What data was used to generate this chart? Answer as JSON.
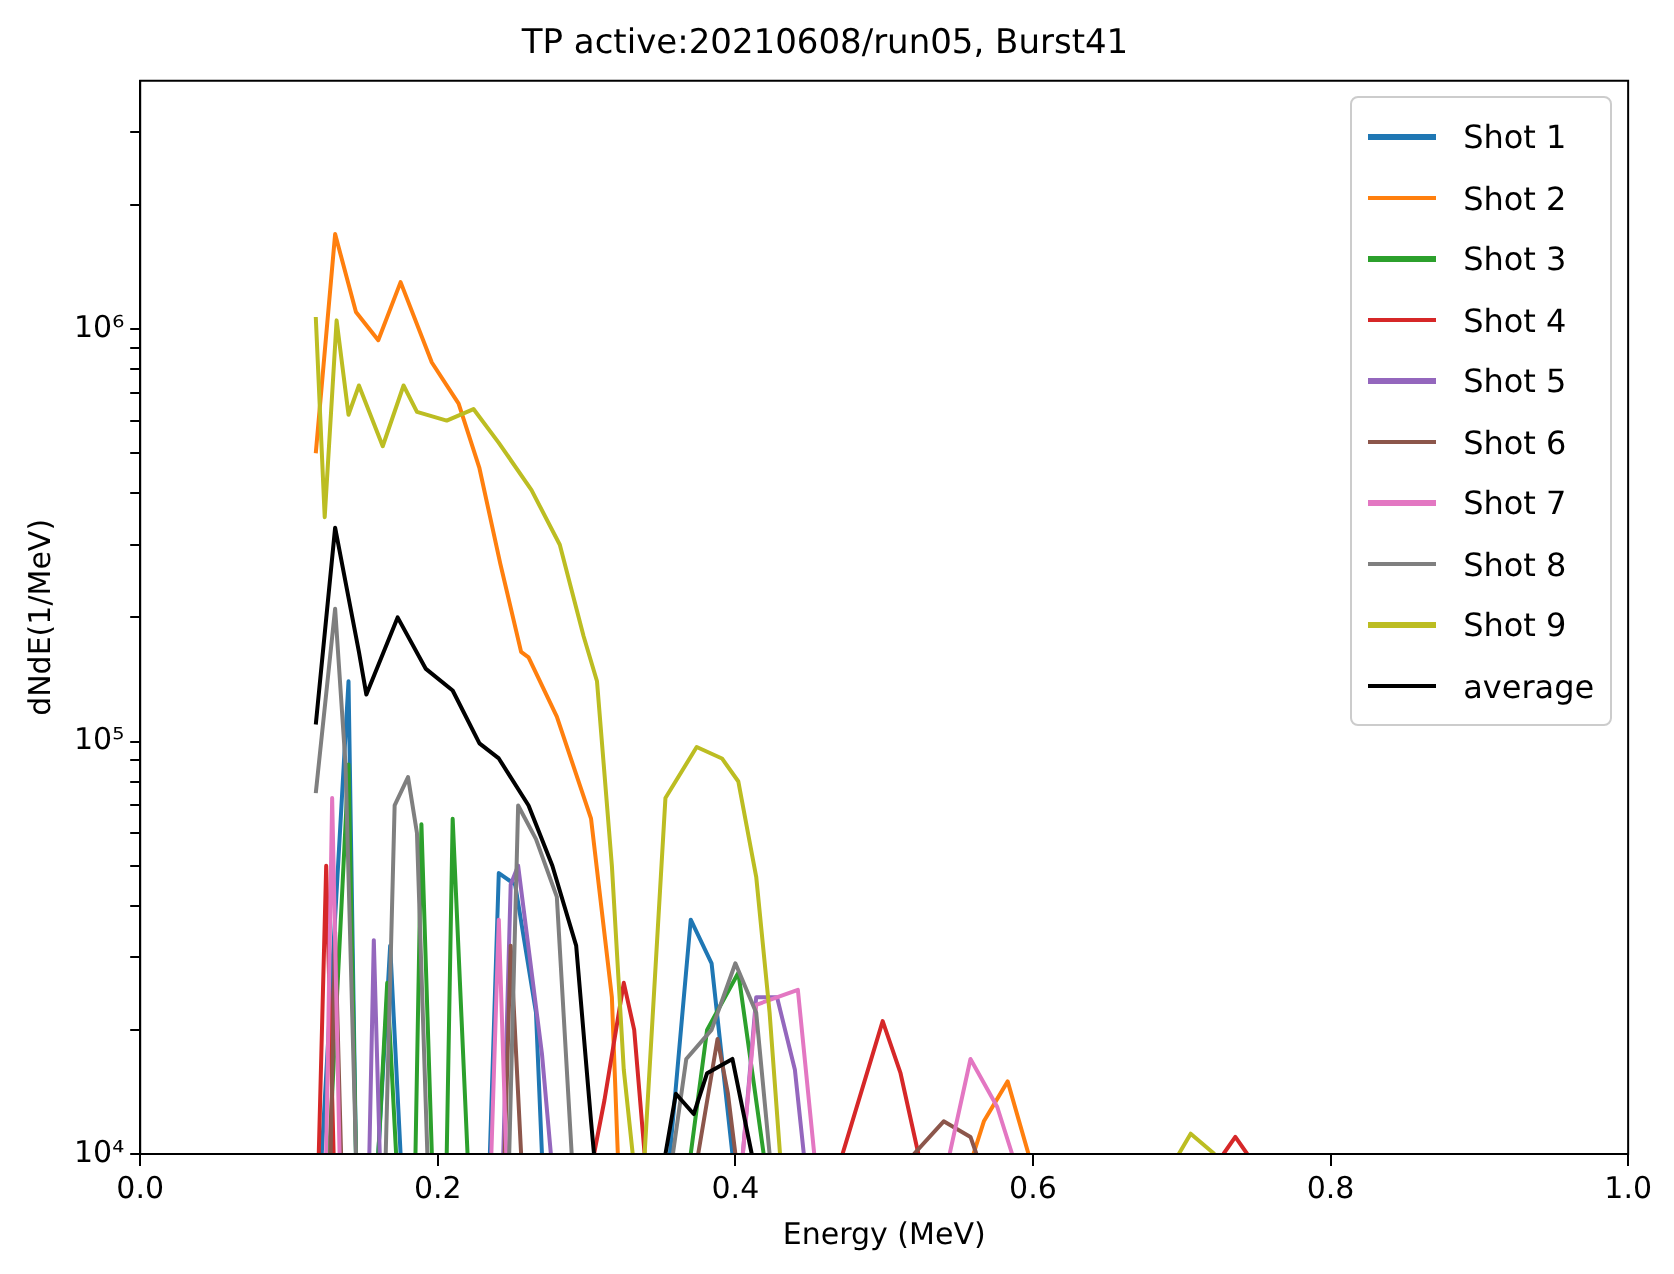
{
  "chart_data": {
    "type": "line",
    "title": "TP active:20210608/run05, Burst41",
    "xlabel": "Energy (MeV)",
    "ylabel": "dNdE(1/MeV)",
    "xlim": [
      0,
      1
    ],
    "xticks": [
      {
        "value": 0,
        "label": "0.0"
      },
      {
        "value": 0.2,
        "label": "0.2"
      },
      {
        "value": 0.4,
        "label": "0.4"
      },
      {
        "value": 0.6,
        "label": "0.6"
      },
      {
        "value": 0.8,
        "label": "0.8"
      },
      {
        "value": 1,
        "label": "1.0"
      }
    ],
    "ylim": [
      10000,
      4000000
    ],
    "log": "y",
    "yticks": [
      {
        "value": 10000,
        "label": "10⁴"
      },
      {
        "value": 20000,
        "label": null
      },
      {
        "value": 30000,
        "label": null
      },
      {
        "value": 40000,
        "label": null
      },
      {
        "value": 50000,
        "label": null
      },
      {
        "value": 60000,
        "label": null
      },
      {
        "value": 70000,
        "label": null
      },
      {
        "value": 80000,
        "label": null
      },
      {
        "value": 90000,
        "label": null
      },
      {
        "value": 100000,
        "label": "10⁵"
      },
      {
        "value": 200000,
        "label": null
      },
      {
        "value": 300000,
        "label": null
      },
      {
        "value": 400000,
        "label": null
      },
      {
        "value": 500000,
        "label": null
      },
      {
        "value": 600000,
        "label": null
      },
      {
        "value": 700000,
        "label": null
      },
      {
        "value": 800000,
        "label": null
      },
      {
        "value": 900000,
        "label": null
      },
      {
        "value": 1000000,
        "label": "10⁶"
      },
      {
        "value": 2000000,
        "label": null
      },
      {
        "value": 3000000,
        "label": null
      }
    ],
    "legend": "top right",
    "grid": false,
    "line_style": "solid",
    "marker": "none",
    "series": [
      {
        "name": "Shot 1",
        "color": "#1f77b4",
        "x": [
          0.122,
          0.14,
          0.145,
          0.15,
          0.16,
          0.168,
          0.175,
          0.2,
          0.235,
          0.241,
          0.252,
          0.266,
          0.27,
          0.3,
          0.356,
          0.37,
          0.384,
          0.391,
          0.398
        ],
        "values": [
          10000,
          140000,
          10000,
          null,
          10000,
          32000,
          10000,
          null,
          10000,
          48000,
          45000,
          22000,
          10000,
          null,
          10000,
          37000,
          29000,
          17000,
          10000
        ]
      },
      {
        "name": "Shot 2",
        "color": "#ff7f0e",
        "x": [
          0.118,
          0.131,
          0.145,
          0.16,
          0.175,
          0.196,
          0.214,
          0.228,
          0.242,
          0.256,
          0.261,
          0.28,
          0.303,
          0.317,
          0.321,
          0.45,
          0.56,
          0.567,
          0.583,
          0.597
        ],
        "values": [
          500000,
          1700000,
          1100000,
          940000,
          1300000,
          830000,
          660000,
          460000,
          270000,
          165000,
          160000,
          115000,
          65000,
          24000,
          10000,
          null,
          10000,
          12000,
          15000,
          10000
        ]
      },
      {
        "name": "Shot 3",
        "color": "#2ca02c",
        "x": [
          0.127,
          0.14,
          0.145,
          0.15,
          0.16,
          0.166,
          0.172,
          0.18,
          0.185,
          0.189,
          0.196,
          0.2,
          0.206,
          0.21,
          0.22,
          0.3,
          0.37,
          0.381,
          0.402,
          0.419
        ],
        "values": [
          10000,
          88000,
          10000,
          null,
          10000,
          26000,
          10000,
          null,
          10000,
          63000,
          10000,
          null,
          10000,
          65000,
          10000,
          null,
          10000,
          20000,
          27500,
          10000
        ]
      },
      {
        "name": "Shot 4",
        "color": "#d62728",
        "x": [
          0.12,
          0.125,
          0.13,
          0.2,
          0.305,
          0.312,
          0.325,
          0.332,
          0.339,
          0.4,
          0.472,
          0.499,
          0.511,
          0.523,
          0.6,
          0.728,
          0.736,
          0.744
        ],
        "values": [
          10000,
          50000,
          10000,
          null,
          10000,
          13500,
          26000,
          20000,
          10000,
          null,
          10000,
          21000,
          15700,
          10000,
          null,
          10000,
          11000,
          10000
        ]
      },
      {
        "name": "Shot 5",
        "color": "#9467bd",
        "x": [
          0.154,
          0.157,
          0.161,
          0.2,
          0.244,
          0.249,
          0.254,
          0.27,
          0.276,
          0.35,
          0.405,
          0.414,
          0.428,
          0.44,
          0.446
        ],
        "values": [
          10000,
          33000,
          10000,
          null,
          10000,
          45000,
          50000,
          17500,
          10000,
          null,
          10000,
          24000,
          24000,
          16000,
          10000
        ]
      },
      {
        "name": "Shot 6",
        "color": "#8c564b",
        "x": [
          0.128,
          0.131,
          0.135,
          0.2,
          0.245,
          0.249,
          0.256,
          0.3,
          0.375,
          0.388,
          0.395,
          0.4,
          0.46,
          0.52,
          0.54,
          0.558,
          0.562
        ],
        "values": [
          10000,
          34500,
          10000,
          null,
          10000,
          32000,
          10000,
          null,
          10000,
          19000,
          14000,
          10000,
          null,
          10000,
          12000,
          11000,
          10000
        ]
      },
      {
        "name": "Shot 7",
        "color": "#e377c2",
        "x": [
          0.125,
          0.129,
          0.134,
          0.2,
          0.236,
          0.241,
          0.246,
          0.3,
          0.405,
          0.414,
          0.442,
          0.453,
          0.5,
          0.544,
          0.558,
          0.576,
          0.586
        ],
        "values": [
          10000,
          73000,
          10000,
          null,
          10000,
          37000,
          10000,
          null,
          10000,
          23000,
          25000,
          10000,
          null,
          10000,
          17000,
          13000,
          10000
        ]
      },
      {
        "name": "Shot 8",
        "color": "#7f7f7f",
        "x": [
          0.118,
          0.131,
          0.138,
          0.145,
          0.16,
          0.165,
          0.171,
          0.18,
          0.186,
          0.193,
          0.22,
          0.248,
          0.254,
          0.266,
          0.28,
          0.29,
          0.33,
          0.358,
          0.367,
          0.384,
          0.4,
          0.414,
          0.423
        ],
        "values": [
          75000,
          210000,
          88000,
          10000,
          null,
          10000,
          70000,
          82000,
          60000,
          10000,
          null,
          10000,
          70000,
          58000,
          42000,
          10000,
          null,
          10000,
          17000,
          20000,
          29000,
          22000,
          10000
        ]
      },
      {
        "name": "Shot 9",
        "color": "#bcbd22",
        "x": [
          0.118,
          0.124,
          0.132,
          0.14,
          0.147,
          0.163,
          0.177,
          0.186,
          0.206,
          0.224,
          0.241,
          0.263,
          0.282,
          0.298,
          0.307,
          0.317,
          0.325,
          0.331,
          0.335,
          0.339,
          0.353,
          0.374,
          0.391,
          0.402,
          0.414,
          0.423,
          0.43,
          0.6,
          0.698,
          0.706,
          0.722
        ],
        "values": [
          1070000,
          350000,
          1050000,
          620000,
          730000,
          520000,
          730000,
          630000,
          600000,
          640000,
          530000,
          407000,
          300000,
          180000,
          140000,
          50000,
          16000,
          10000,
          null,
          10000,
          73000,
          97000,
          91000,
          80000,
          47000,
          22000,
          10000,
          null,
          10000,
          11200,
          10000
        ]
      },
      {
        "name": "average",
        "color": "#000000",
        "x": [
          0.118,
          0.131,
          0.147,
          0.152,
          0.173,
          0.192,
          0.21,
          0.228,
          0.241,
          0.261,
          0.277,
          0.293,
          0.303,
          0.305,
          0.33,
          0.353,
          0.36,
          0.372,
          0.381,
          0.398,
          0.411
        ],
        "values": [
          110000,
          330000,
          165000,
          130000,
          200000,
          150000,
          133000,
          99000,
          91000,
          70000,
          50000,
          32000,
          12000,
          10000,
          null,
          10000,
          14000,
          12500,
          15700,
          17000,
          10000
        ]
      }
    ]
  }
}
